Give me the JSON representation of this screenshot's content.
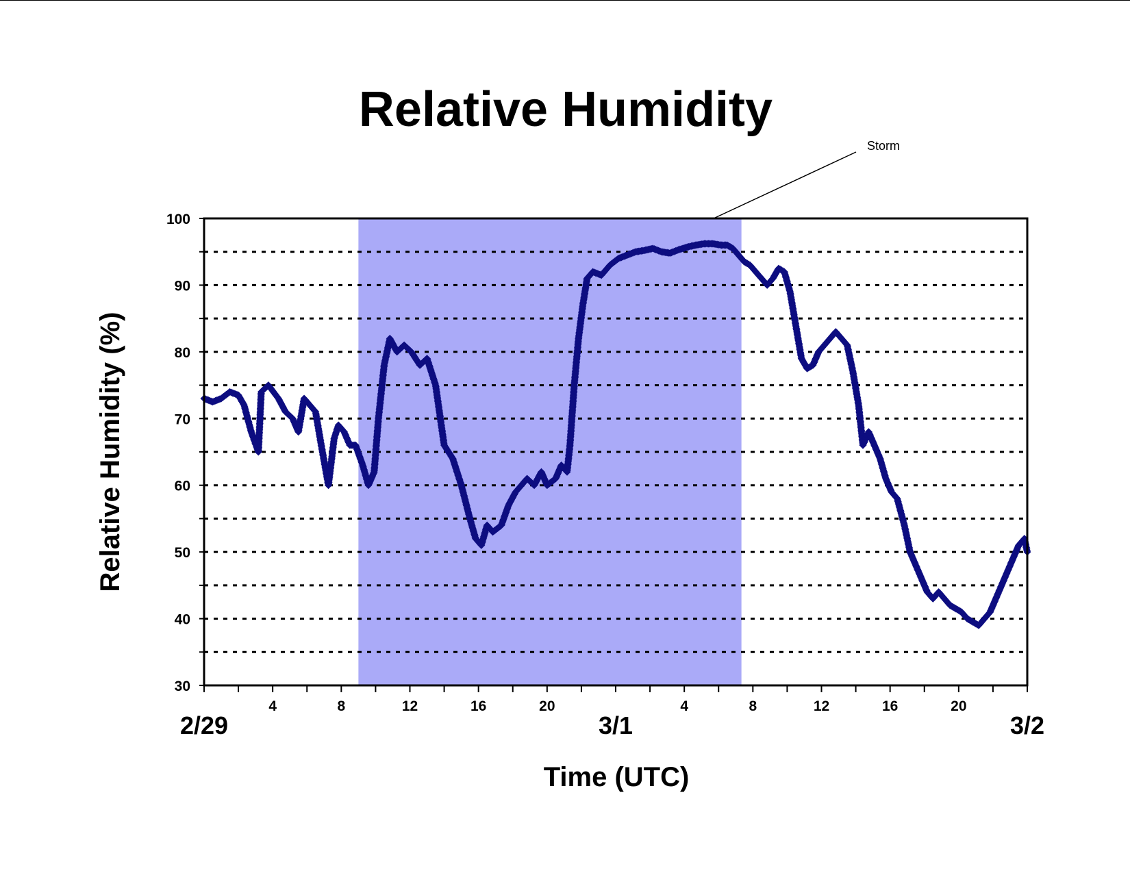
{
  "chart_data": {
    "type": "scatter",
    "title": "Relative Humidity",
    "xlabel": "Time (UTC)",
    "ylabel": "Relative Humidity (%)",
    "ylim": [
      30,
      100
    ],
    "xlim": [
      "2/29 00:00",
      "3/2 00:00"
    ],
    "y_ticks": [
      "30",
      "40",
      "50",
      "60",
      "70",
      "80",
      "90",
      "100"
    ],
    "y_minor_grid": [
      35,
      45,
      55,
      65,
      75,
      85,
      95
    ],
    "x_ticks": [
      {
        "at": "2/29 04:00",
        "label": "4"
      },
      {
        "at": "2/29 08:00",
        "label": "8"
      },
      {
        "at": "2/29 12:00",
        "label": "12"
      },
      {
        "at": "2/29 16:00",
        "label": "16"
      },
      {
        "at": "2/29 20:00",
        "label": "20"
      },
      {
        "at": "3/1 04:00",
        "label": "4"
      },
      {
        "at": "3/1 08:00",
        "label": "8"
      },
      {
        "at": "3/1 12:00",
        "label": "12"
      },
      {
        "at": "3/1 16:00",
        "label": "16"
      },
      {
        "at": "3/1 20:00",
        "label": "20"
      }
    ],
    "date_labels": [
      {
        "at": "2/29 00:00",
        "label": "2/29"
      },
      {
        "at": "3/1 00:00",
        "label": "3/1"
      },
      {
        "at": "3/2 00:00",
        "label": "3/2"
      }
    ],
    "grid": "horizontal dotted",
    "legend": "none",
    "highlight": {
      "label": "Storm",
      "from": "2/29 09:00",
      "to": "3/1 07:20",
      "color": "#aaaaf8"
    },
    "series": [
      {
        "color": "#0d0d80",
        "marker": "diamond",
        "points": [
          [
            "2/29 00:00",
            73
          ],
          [
            "2/29 00:30",
            72.5
          ],
          [
            "2/29 01:00",
            73
          ],
          [
            "2/29 01:30",
            74
          ],
          [
            "2/29 02:00",
            73.5
          ],
          [
            "2/29 02:20",
            72
          ],
          [
            "2/29 02:45",
            68
          ],
          [
            "2/29 03:10",
            65
          ],
          [
            "2/29 03:20",
            74
          ],
          [
            "2/29 03:45",
            75
          ],
          [
            "2/29 04:20",
            73
          ],
          [
            "2/29 04:45",
            71
          ],
          [
            "2/29 05:10",
            70
          ],
          [
            "2/29 05:30",
            68
          ],
          [
            "2/29 05:50",
            73
          ],
          [
            "2/29 06:10",
            72
          ],
          [
            "2/29 06:30",
            71
          ],
          [
            "2/29 06:50",
            66
          ],
          [
            "2/29 07:15",
            60
          ],
          [
            "2/29 07:35",
            67
          ],
          [
            "2/29 07:50",
            69
          ],
          [
            "2/29 08:10",
            68
          ],
          [
            "2/29 08:30",
            66
          ],
          [
            "2/29 08:50",
            66
          ],
          [
            "2/29 09:15",
            63
          ],
          [
            "2/29 09:35",
            60
          ],
          [
            "2/29 09:55",
            62
          ],
          [
            "2/29 10:10",
            70
          ],
          [
            "2/29 10:30",
            78
          ],
          [
            "2/29 10:50",
            82
          ],
          [
            "2/29 11:15",
            80
          ],
          [
            "2/29 11:40",
            81
          ],
          [
            "2/29 12:05",
            80
          ],
          [
            "2/29 12:35",
            78
          ],
          [
            "2/29 13:00",
            79
          ],
          [
            "2/29 13:30",
            75
          ],
          [
            "2/29 14:00",
            66
          ],
          [
            "2/29 14:30",
            64
          ],
          [
            "2/29 15:00",
            60
          ],
          [
            "2/29 15:30",
            55
          ],
          [
            "2/29 15:50",
            52
          ],
          [
            "2/29 16:10",
            51
          ],
          [
            "2/29 16:30",
            54
          ],
          [
            "2/29 16:50",
            53
          ],
          [
            "2/29 17:20",
            54
          ],
          [
            "2/29 17:45",
            57
          ],
          [
            "2/29 18:10",
            59
          ],
          [
            "2/29 18:30",
            60
          ],
          [
            "2/29 18:50",
            61
          ],
          [
            "2/29 19:15",
            60
          ],
          [
            "2/29 19:40",
            62
          ],
          [
            "2/29 20:00",
            60
          ],
          [
            "2/29 20:30",
            61
          ],
          [
            "2/29 20:50",
            63
          ],
          [
            "2/29 21:10",
            62
          ],
          [
            "2/29 21:20",
            66
          ],
          [
            "2/29 21:35",
            75
          ],
          [
            "2/29 21:50",
            82
          ],
          [
            "2/29 22:05",
            87
          ],
          [
            "2/29 22:20",
            91
          ],
          [
            "2/29 22:40",
            92
          ],
          [
            "2/29 23:10",
            91.5
          ],
          [
            "2/29 23:40",
            93
          ],
          [
            "3/1 00:10",
            94
          ],
          [
            "3/1 00:40",
            94.5
          ],
          [
            "3/1 01:10",
            95
          ],
          [
            "3/1 01:40",
            95.2
          ],
          [
            "3/1 02:10",
            95.5
          ],
          [
            "3/1 02:40",
            95
          ],
          [
            "3/1 03:10",
            94.8
          ],
          [
            "3/1 03:40",
            95.3
          ],
          [
            "3/1 04:10",
            95.7
          ],
          [
            "3/1 04:40",
            96
          ],
          [
            "3/1 05:10",
            96.2
          ],
          [
            "3/1 05:40",
            96.2
          ],
          [
            "3/1 06:10",
            96
          ],
          [
            "3/1 06:30",
            96
          ],
          [
            "3/1 06:50",
            95.5
          ],
          [
            "3/1 07:10",
            94.5
          ],
          [
            "3/1 07:30",
            93.5
          ],
          [
            "3/1 07:50",
            93
          ],
          [
            "3/1 08:10",
            92
          ],
          [
            "3/1 08:30",
            91
          ],
          [
            "3/1 08:50",
            90
          ],
          [
            "3/1 09:10",
            91
          ],
          [
            "3/1 09:30",
            92.5
          ],
          [
            "3/1 09:50",
            92
          ],
          [
            "3/1 10:10",
            89
          ],
          [
            "3/1 10:30",
            84
          ],
          [
            "3/1 10:50",
            79
          ],
          [
            "3/1 11:10",
            77.5
          ],
          [
            "3/1 11:30",
            78
          ],
          [
            "3/1 11:50",
            80
          ],
          [
            "3/1 12:10",
            81
          ],
          [
            "3/1 12:30",
            82
          ],
          [
            "3/1 12:50",
            83
          ],
          [
            "3/1 13:10",
            82
          ],
          [
            "3/1 13:30",
            81
          ],
          [
            "3/1 13:50",
            77
          ],
          [
            "3/1 14:10",
            72
          ],
          [
            "3/1 14:25",
            66
          ],
          [
            "3/1 14:45",
            68
          ],
          [
            "3/1 15:05",
            66
          ],
          [
            "3/1 15:25",
            64
          ],
          [
            "3/1 15:45",
            61
          ],
          [
            "3/1 16:05",
            59
          ],
          [
            "3/1 16:25",
            58
          ],
          [
            "3/1 16:50",
            54
          ],
          [
            "3/1 17:10",
            50
          ],
          [
            "3/1 17:30",
            48
          ],
          [
            "3/1 17:50",
            46
          ],
          [
            "3/1 18:10",
            44
          ],
          [
            "3/1 18:30",
            43
          ],
          [
            "3/1 18:50",
            44
          ],
          [
            "3/1 19:10",
            43
          ],
          [
            "3/1 19:30",
            42
          ],
          [
            "3/1 19:50",
            41.5
          ],
          [
            "3/1 20:10",
            41
          ],
          [
            "3/1 20:30",
            40
          ],
          [
            "3/1 20:50",
            39.5
          ],
          [
            "3/1 21:10",
            39
          ],
          [
            "3/1 21:30",
            40
          ],
          [
            "3/1 21:50",
            41
          ],
          [
            "3/1 22:10",
            43
          ],
          [
            "3/1 22:30",
            45
          ],
          [
            "3/1 22:50",
            47
          ],
          [
            "3/1 23:10",
            49
          ],
          [
            "3/1 23:30",
            51
          ],
          [
            "3/1 23:50",
            52
          ],
          [
            "3/2 00:00",
            50
          ]
        ]
      }
    ]
  }
}
